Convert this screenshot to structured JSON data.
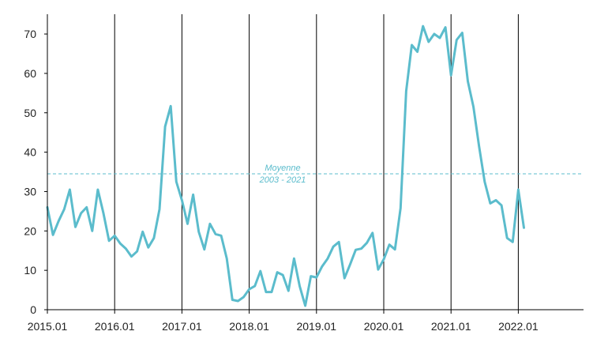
{
  "chart_data": {
    "type": "line",
    "title": "",
    "xlabel": "",
    "ylabel": "",
    "ylim": [
      0,
      75
    ],
    "y_ticks": [
      0,
      10,
      20,
      30,
      40,
      50,
      60,
      70
    ],
    "x_ticks": [
      "2015.01",
      "2016.01",
      "2017.01",
      "2018.01",
      "2019.01",
      "2020.01",
      "2021.01",
      "2022.01"
    ],
    "year_gridlines": [
      "2016.01",
      "2017.01",
      "2018.01",
      "2019.01",
      "2020.01",
      "2021.01",
      "2022.01"
    ],
    "grid": "vertical lines at each January",
    "colors": {
      "series": "#5bbccc",
      "average": "#5bbccc",
      "gridline": "#000000",
      "axis": "#000000",
      "text": "#222222"
    },
    "average": {
      "value": 34.5,
      "label_line1": "Moyenne",
      "label_line2": "2003 - 2021"
    },
    "series": [
      {
        "x_start": "2015.01",
        "frequency": "monthly",
        "values": [
          26,
          19,
          22.5,
          25.5,
          30.5,
          21,
          24.5,
          26,
          20,
          30.5,
          24.5,
          17.5,
          18.8,
          16.8,
          15.5,
          13.5,
          14.8,
          19.8,
          15.8,
          18.2,
          25.5,
          46.5,
          51.7,
          32.5,
          27.8,
          21.8,
          29.2,
          19.8,
          15.3,
          21.8,
          19.2,
          18.8,
          13,
          2.5,
          2.2,
          3.2,
          5.2,
          6,
          9.8,
          4.5,
          4.5,
          9.5,
          8.8,
          4.8,
          13,
          6,
          1,
          8.5,
          8.2,
          11,
          13,
          16,
          17.2,
          8,
          11.5,
          15.2,
          15.5,
          17,
          19.5,
          10.2,
          12.8,
          16.5,
          15.3,
          25.8,
          55.5,
          67.2,
          65.5,
          72,
          68,
          70,
          69,
          71.7,
          59.5,
          68.5,
          70.3,
          58,
          51.5,
          41.5,
          32.5,
          27,
          27.8,
          26.5,
          18.2,
          17.2,
          30.5,
          20.8
        ]
      }
    ]
  }
}
